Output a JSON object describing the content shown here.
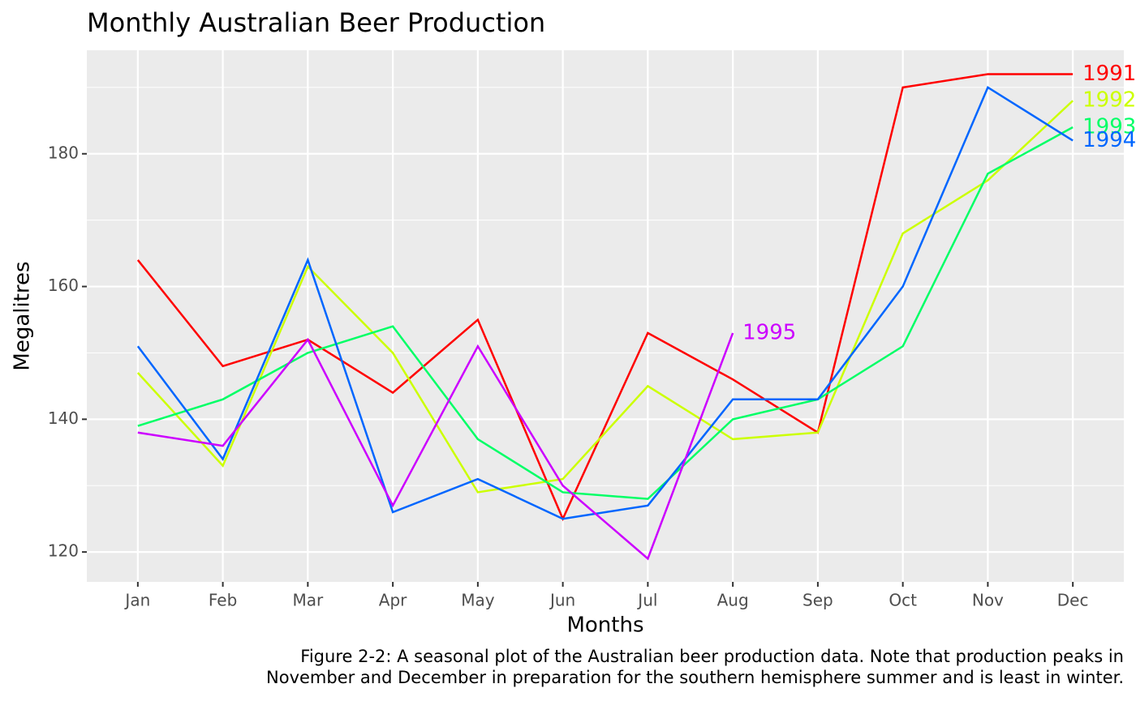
{
  "chart_data": {
    "type": "line",
    "title": "Monthly Australian Beer Production",
    "x_label": "Months",
    "y_label": "Megalitres",
    "caption": [
      "Figure 2-2: A seasonal plot of the Australian beer production data. Note that production peaks in",
      "November and December in preparation for the southern hemisphere summer and is least in winter."
    ],
    "categories": [
      "Jan",
      "Feb",
      "Mar",
      "Apr",
      "May",
      "Jun",
      "Jul",
      "Aug",
      "Sep",
      "Oct",
      "Nov",
      "Dec"
    ],
    "series": [
      {
        "name": "1991",
        "color": "#ff0000",
        "values": [
          164,
          148,
          152,
          144,
          155,
          125,
          153,
          146,
          138,
          190,
          192,
          192
        ]
      },
      {
        "name": "1992",
        "color": "#ccff00",
        "values": [
          147,
          133,
          163,
          150,
          129,
          131,
          145,
          137,
          138,
          168,
          176,
          188
        ]
      },
      {
        "name": "1993",
        "color": "#00ff66",
        "values": [
          139,
          143,
          150,
          154,
          137,
          129,
          128,
          140,
          143,
          151,
          177,
          184
        ]
      },
      {
        "name": "1994",
        "color": "#0066ff",
        "values": [
          151,
          134,
          164,
          126,
          131,
          125,
          127,
          143,
          143,
          160,
          190,
          182
        ]
      },
      {
        "name": "1995",
        "color": "#cc00ff",
        "values": [
          138,
          136,
          152,
          127,
          151,
          130,
          119,
          153,
          null,
          null,
          null,
          null
        ]
      }
    ],
    "ylim": [
      115.5,
      195.6
    ],
    "yticks": [
      120,
      140,
      160,
      180
    ],
    "yminor": [
      130,
      150,
      170,
      190
    ],
    "grid": true
  }
}
